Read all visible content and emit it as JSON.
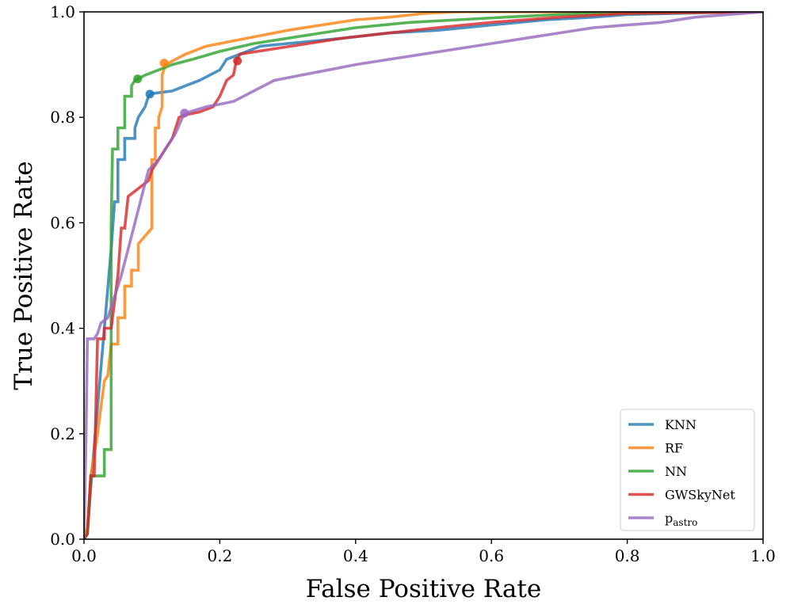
{
  "chart_data": {
    "type": "line",
    "title": "",
    "xlabel": "False Positive Rate",
    "ylabel": "True Positive Rate",
    "xlim": [
      0.0,
      1.0
    ],
    "ylim": [
      0.0,
      1.0
    ],
    "grid": false,
    "legend_position": "bottom-right",
    "xticks": [
      "0.0",
      "0.2",
      "0.4",
      "0.6",
      "0.8",
      "1.0"
    ],
    "yticks": [
      "0.0",
      "0.2",
      "0.4",
      "0.6",
      "0.8",
      "1.0"
    ],
    "xtick_values": [
      0.0,
      0.2,
      0.4,
      0.6,
      0.8,
      1.0
    ],
    "ytick_values": [
      0.0,
      0.2,
      0.4,
      0.6,
      0.8,
      1.0
    ],
    "series": [
      {
        "name": "KNN",
        "legend_label": "KNN",
        "color": "#1f77b4",
        "marker": {
          "x": 0.097,
          "y": 0.844
        },
        "points": [
          [
            0,
            0
          ],
          [
            0.005,
            0.01
          ],
          [
            0.01,
            0.1
          ],
          [
            0.02,
            0.25
          ],
          [
            0.03,
            0.4
          ],
          [
            0.04,
            0.55
          ],
          [
            0.045,
            0.64
          ],
          [
            0.05,
            0.64
          ],
          [
            0.05,
            0.72
          ],
          [
            0.06,
            0.72
          ],
          [
            0.06,
            0.76
          ],
          [
            0.075,
            0.76
          ],
          [
            0.075,
            0.78
          ],
          [
            0.08,
            0.8
          ],
          [
            0.09,
            0.82
          ],
          [
            0.095,
            0.84
          ],
          [
            0.1,
            0.845
          ],
          [
            0.13,
            0.85
          ],
          [
            0.15,
            0.86
          ],
          [
            0.17,
            0.87
          ],
          [
            0.2,
            0.89
          ],
          [
            0.21,
            0.91
          ],
          [
            0.23,
            0.92
          ],
          [
            0.26,
            0.935
          ],
          [
            0.3,
            0.94
          ],
          [
            0.38,
            0.95
          ],
          [
            0.45,
            0.96
          ],
          [
            0.52,
            0.965
          ],
          [
            0.6,
            0.975
          ],
          [
            0.68,
            0.985
          ],
          [
            0.75,
            0.99
          ],
          [
            0.8,
            0.995
          ],
          [
            0.9,
            0.998
          ],
          [
            1.0,
            1.0
          ]
        ]
      },
      {
        "name": "RF",
        "legend_label": "RF",
        "color": "#ff7f0e",
        "marker": {
          "x": 0.118,
          "y": 0.903
        },
        "points": [
          [
            0,
            0
          ],
          [
            0.005,
            0.02
          ],
          [
            0.01,
            0.12
          ],
          [
            0.02,
            0.2
          ],
          [
            0.03,
            0.3
          ],
          [
            0.035,
            0.31
          ],
          [
            0.04,
            0.37
          ],
          [
            0.05,
            0.37
          ],
          [
            0.05,
            0.42
          ],
          [
            0.06,
            0.42
          ],
          [
            0.06,
            0.48
          ],
          [
            0.07,
            0.48
          ],
          [
            0.07,
            0.51
          ],
          [
            0.08,
            0.51
          ],
          [
            0.08,
            0.56
          ],
          [
            0.1,
            0.59
          ],
          [
            0.1,
            0.72
          ],
          [
            0.105,
            0.72
          ],
          [
            0.105,
            0.78
          ],
          [
            0.11,
            0.78
          ],
          [
            0.11,
            0.8
          ],
          [
            0.115,
            0.82
          ],
          [
            0.115,
            0.88
          ],
          [
            0.12,
            0.9
          ],
          [
            0.135,
            0.91
          ],
          [
            0.15,
            0.92
          ],
          [
            0.18,
            0.935
          ],
          [
            0.22,
            0.945
          ],
          [
            0.26,
            0.955
          ],
          [
            0.3,
            0.965
          ],
          [
            0.35,
            0.975
          ],
          [
            0.4,
            0.985
          ],
          [
            0.45,
            0.99
          ],
          [
            0.5,
            0.997
          ],
          [
            0.55,
            1.0
          ],
          [
            1.0,
            1.0
          ]
        ]
      },
      {
        "name": "NN",
        "legend_label": "NN",
        "color": "#2ca02c",
        "marker": {
          "x": 0.079,
          "y": 0.873
        },
        "points": [
          [
            0,
            0
          ],
          [
            0.005,
            0.01
          ],
          [
            0.01,
            0.12
          ],
          [
            0.03,
            0.12
          ],
          [
            0.03,
            0.17
          ],
          [
            0.04,
            0.17
          ],
          [
            0.04,
            0.6
          ],
          [
            0.042,
            0.74
          ],
          [
            0.05,
            0.74
          ],
          [
            0.05,
            0.78
          ],
          [
            0.06,
            0.78
          ],
          [
            0.06,
            0.84
          ],
          [
            0.07,
            0.84
          ],
          [
            0.07,
            0.86
          ],
          [
            0.075,
            0.87
          ],
          [
            0.09,
            0.88
          ],
          [
            0.11,
            0.89
          ],
          [
            0.13,
            0.9
          ],
          [
            0.16,
            0.91
          ],
          [
            0.2,
            0.925
          ],
          [
            0.25,
            0.94
          ],
          [
            0.3,
            0.95
          ],
          [
            0.35,
            0.96
          ],
          [
            0.4,
            0.97
          ],
          [
            0.48,
            0.98
          ],
          [
            0.55,
            0.985
          ],
          [
            0.62,
            0.99
          ],
          [
            0.7,
            0.995
          ],
          [
            0.8,
            0.998
          ],
          [
            1.0,
            1.0
          ]
        ]
      },
      {
        "name": "GWSkyNet",
        "legend_label": "GWSkyNet",
        "color": "#d62728",
        "marker": {
          "x": 0.226,
          "y": 0.907
        },
        "points": [
          [
            0,
            0
          ],
          [
            0.005,
            0.01
          ],
          [
            0.01,
            0.12
          ],
          [
            0.015,
            0.12
          ],
          [
            0.02,
            0.38
          ],
          [
            0.03,
            0.38
          ],
          [
            0.03,
            0.4
          ],
          [
            0.04,
            0.4
          ],
          [
            0.05,
            0.5
          ],
          [
            0.055,
            0.59
          ],
          [
            0.06,
            0.59
          ],
          [
            0.065,
            0.65
          ],
          [
            0.075,
            0.66
          ],
          [
            0.085,
            0.67
          ],
          [
            0.095,
            0.68
          ],
          [
            0.1,
            0.7
          ],
          [
            0.11,
            0.72
          ],
          [
            0.12,
            0.74
          ],
          [
            0.13,
            0.76
          ],
          [
            0.14,
            0.8
          ],
          [
            0.15,
            0.805
          ],
          [
            0.17,
            0.81
          ],
          [
            0.19,
            0.82
          ],
          [
            0.2,
            0.84
          ],
          [
            0.21,
            0.87
          ],
          [
            0.22,
            0.88
          ],
          [
            0.225,
            0.91
          ],
          [
            0.23,
            0.92
          ],
          [
            0.28,
            0.93
          ],
          [
            0.33,
            0.94
          ],
          [
            0.38,
            0.95
          ],
          [
            0.45,
            0.96
          ],
          [
            0.52,
            0.97
          ],
          [
            0.6,
            0.98
          ],
          [
            0.7,
            0.99
          ],
          [
            0.8,
            0.997
          ],
          [
            1.0,
            1.0
          ]
        ]
      },
      {
        "name": "p_astro",
        "legend_label": "pastro",
        "legend_label_main": "p",
        "legend_label_sub": "astro",
        "color": "#9467bd",
        "marker": {
          "x": 0.148,
          "y": 0.808
        },
        "points": [
          [
            0,
            0
          ],
          [
            0.003,
            0.2
          ],
          [
            0.005,
            0.38
          ],
          [
            0.015,
            0.38
          ],
          [
            0.02,
            0.39
          ],
          [
            0.025,
            0.41
          ],
          [
            0.035,
            0.42
          ],
          [
            0.045,
            0.46
          ],
          [
            0.055,
            0.5
          ],
          [
            0.065,
            0.55
          ],
          [
            0.075,
            0.6
          ],
          [
            0.085,
            0.65
          ],
          [
            0.095,
            0.7
          ],
          [
            0.11,
            0.72
          ],
          [
            0.125,
            0.75
          ],
          [
            0.135,
            0.77
          ],
          [
            0.145,
            0.8
          ],
          [
            0.155,
            0.81
          ],
          [
            0.18,
            0.82
          ],
          [
            0.2,
            0.825
          ],
          [
            0.22,
            0.83
          ],
          [
            0.25,
            0.85
          ],
          [
            0.28,
            0.87
          ],
          [
            0.32,
            0.88
          ],
          [
            0.36,
            0.89
          ],
          [
            0.4,
            0.9
          ],
          [
            0.45,
            0.91
          ],
          [
            0.5,
            0.92
          ],
          [
            0.55,
            0.93
          ],
          [
            0.6,
            0.94
          ],
          [
            0.65,
            0.95
          ],
          [
            0.7,
            0.96
          ],
          [
            0.75,
            0.97
          ],
          [
            0.8,
            0.975
          ],
          [
            0.85,
            0.98
          ],
          [
            0.9,
            0.99
          ],
          [
            0.95,
            0.995
          ],
          [
            1.0,
            1.0
          ]
        ]
      }
    ]
  }
}
